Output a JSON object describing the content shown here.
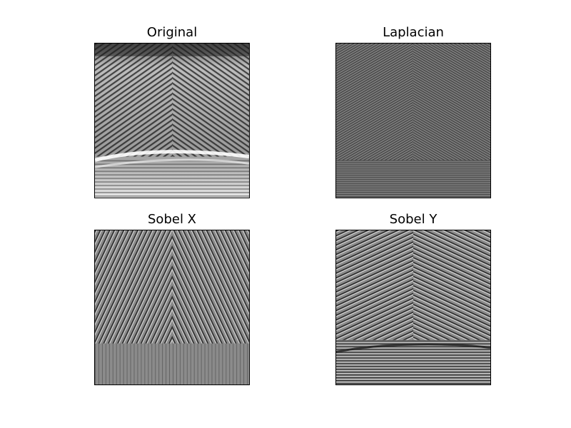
{
  "figure": {
    "panels": [
      {
        "id": "original",
        "title": "Original",
        "colormap": "gray"
      },
      {
        "id": "laplacian",
        "title": "Laplacian",
        "colormap": "gray"
      },
      {
        "id": "sobel_x",
        "title": "Sobel X",
        "colormap": "gray"
      },
      {
        "id": "sobel_y",
        "title": "Sobel Y",
        "colormap": "gray"
      }
    ]
  }
}
